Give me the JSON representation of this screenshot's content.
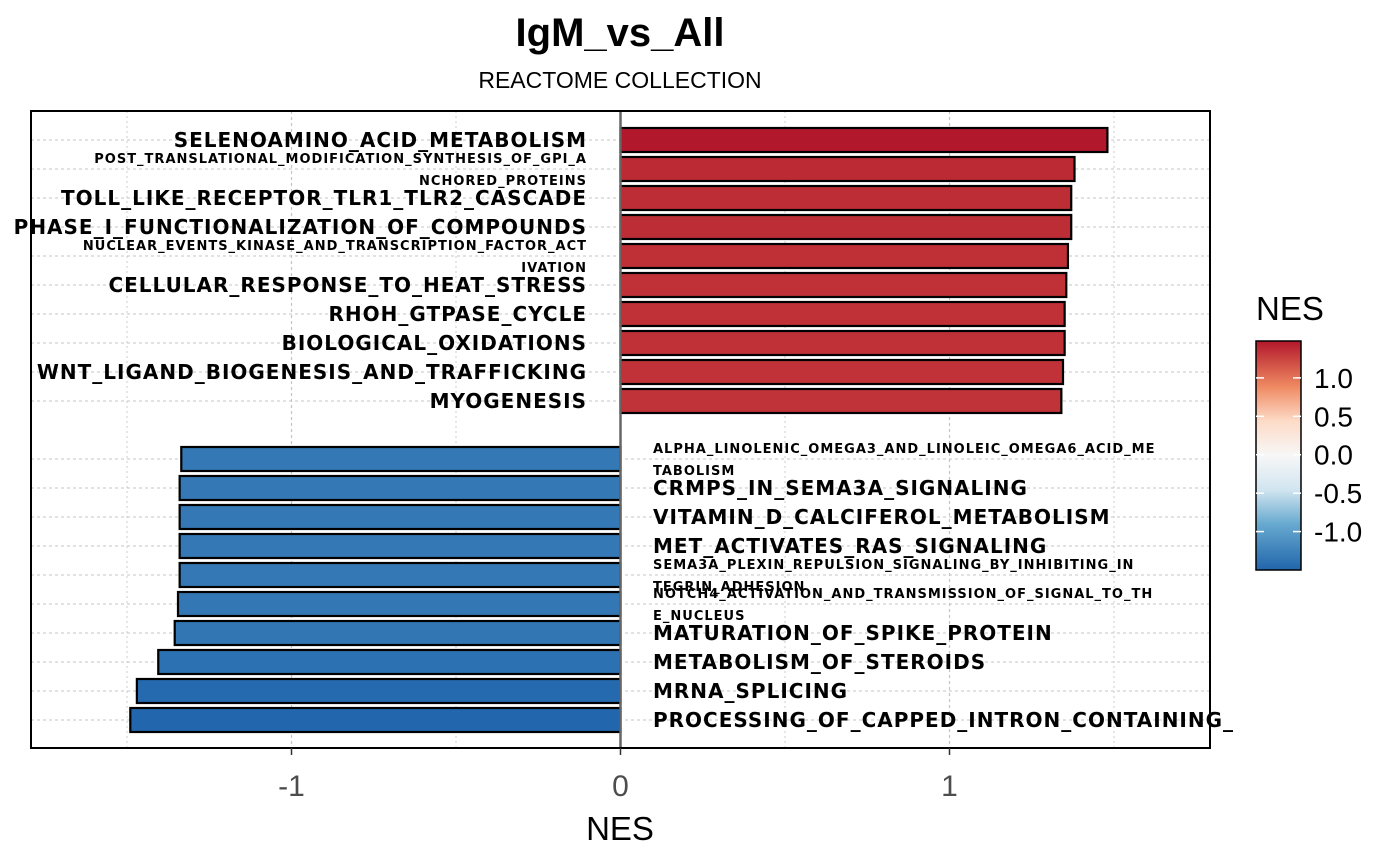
{
  "chart_data": {
    "type": "bar",
    "orientation": "horizontal",
    "title": "IgM_vs_All",
    "subtitle": "REACTOME COLLECTION",
    "xlabel": "NES",
    "xlim": [
      -1.8,
      1.8
    ],
    "x_ticks": [
      -1,
      0,
      1
    ],
    "x_tick_labels": [
      "-1",
      "0",
      "1"
    ],
    "grid": true,
    "legend": {
      "title": "NES",
      "placement": "right",
      "ticks": [
        1.0,
        0.5,
        0.0,
        -0.5,
        -1.0
      ],
      "tick_labels": [
        "1.0",
        "0.5",
        "0.0",
        "-0.5",
        "-1.0"
      ],
      "range": [
        -1.5,
        1.48
      ],
      "colors": {
        "low": "#2166ac",
        "mid": "#f7f7f7",
        "high": "#b2182b"
      }
    },
    "bars": [
      {
        "label": "SELENOAMINO_ACID_METABOLISM",
        "value": 1.48
      },
      {
        "label": "POST_TRANSLATIONAL_MODIFICATION_SYNTHESIS_OF_GPI_A\nNCHORED_PROTEINS",
        "value": 1.38
      },
      {
        "label": "TOLL_LIKE_RECEPTOR_TLR1_TLR2_CASCADE",
        "value": 1.37
      },
      {
        "label": "PHASE_I_FUNCTIONALIZATION_OF_COMPOUNDS",
        "value": 1.37
      },
      {
        "label": "NUCLEAR_EVENTS_KINASE_AND_TRANSCRIPTION_FACTOR_ACT\nIVATION",
        "value": 1.36
      },
      {
        "label": "CELLULAR_RESPONSE_TO_HEAT_STRESS",
        "value": 1.355
      },
      {
        "label": "RHOH_GTPASE_CYCLE",
        "value": 1.35
      },
      {
        "label": "BIOLOGICAL_OXIDATIONS",
        "value": 1.35
      },
      {
        "label": "WNT_LIGAND_BIOGENESIS_AND_TRAFFICKING",
        "value": 1.345
      },
      {
        "label": "MYOGENESIS",
        "value": 1.34
      },
      {
        "label": "ALPHA_LINOLENIC_OMEGA3_AND_LINOLEIC_OMEGA6_ACID_ME\nTABOLISM",
        "value": -1.335
      },
      {
        "label": "CRMPS_IN_SEMA3A_SIGNALING",
        "value": -1.34
      },
      {
        "label": "VITAMIN_D_CALCIFEROL_METABOLISM",
        "value": -1.34
      },
      {
        "label": "MET_ACTIVATES_RAS_SIGNALING",
        "value": -1.34
      },
      {
        "label": "SEMA3A_PLEXIN_REPULSION_SIGNALING_BY_INHIBITING_IN\nTEGRIN_ADHESION",
        "value": -1.34
      },
      {
        "label": "NOTCH4_ACTIVATION_AND_TRANSMISSION_OF_SIGNAL_TO_TH\nE_NUCLEUS",
        "value": -1.345
      },
      {
        "label": "MATURATION_OF_SPIKE_PROTEIN",
        "value": -1.355
      },
      {
        "label": "METABOLISM_OF_STEROIDS",
        "value": -1.405
      },
      {
        "label": "MRNA_SPLICING",
        "value": -1.47
      },
      {
        "label": "PROCESSING_OF_CAPPED_INTRON_CONTAINING_",
        "value": -1.49
      }
    ]
  }
}
